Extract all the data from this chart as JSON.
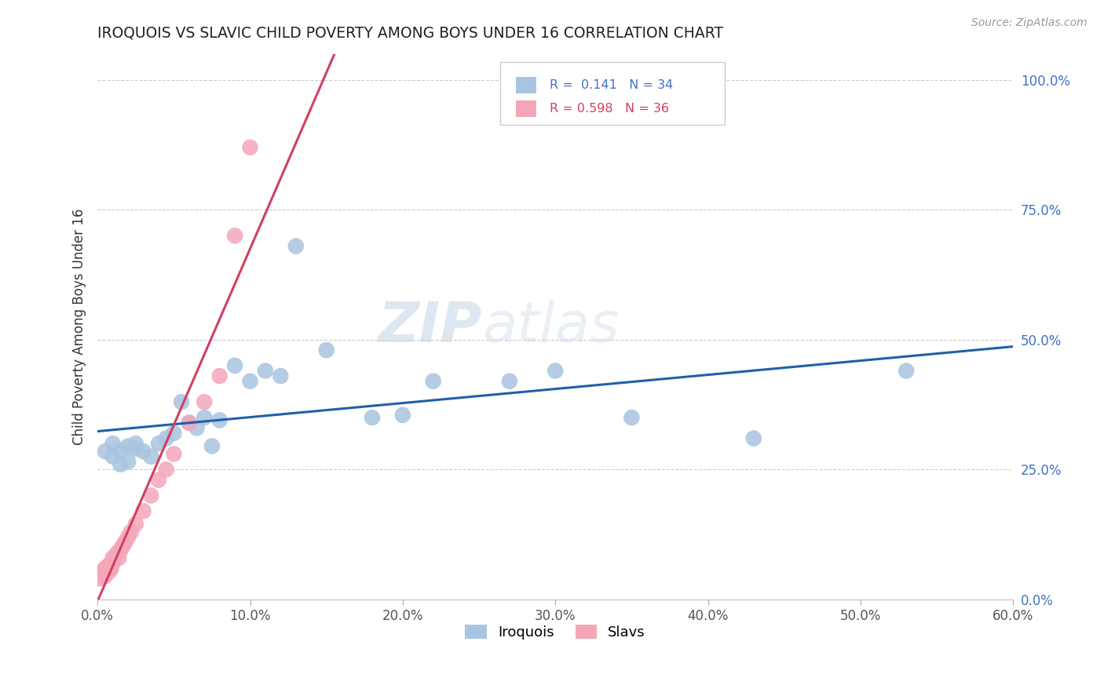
{
  "title": "IROQUOIS VS SLAVIC CHILD POVERTY AMONG BOYS UNDER 16 CORRELATION CHART",
  "source": "Source: ZipAtlas.com",
  "ylabel": "Child Poverty Among Boys Under 16",
  "xlabel_ticks": [
    "0.0%",
    "10.0%",
    "20.0%",
    "30.0%",
    "40.0%",
    "50.0%",
    "60.0%"
  ],
  "xlabel_vals": [
    0.0,
    0.1,
    0.2,
    0.3,
    0.4,
    0.5,
    0.6
  ],
  "ylabel_ticks": [
    "0.0%",
    "25.0%",
    "50.0%",
    "75.0%",
    "100.0%"
  ],
  "ylabel_vals": [
    0.0,
    0.25,
    0.5,
    0.75,
    1.0
  ],
  "xlim": [
    0.0,
    0.6
  ],
  "ylim": [
    0.0,
    1.05
  ],
  "iroquois_color": "#a8c4e0",
  "slavs_color": "#f4a7b9",
  "iroquois_line_color": "#2060a8",
  "slavs_line_color": "#d04060",
  "watermark_zip": "ZIP",
  "watermark_atlas": "atlas",
  "iroquois_x": [
    0.005,
    0.01,
    0.01,
    0.015,
    0.015,
    0.02,
    0.02,
    0.025,
    0.025,
    0.03,
    0.035,
    0.04,
    0.045,
    0.05,
    0.055,
    0.06,
    0.065,
    0.07,
    0.075,
    0.08,
    0.09,
    0.1,
    0.11,
    0.12,
    0.13,
    0.15,
    0.18,
    0.2,
    0.22,
    0.27,
    0.3,
    0.35,
    0.43,
    0.53
  ],
  "iroquois_y": [
    0.285,
    0.3,
    0.275,
    0.285,
    0.26,
    0.295,
    0.265,
    0.29,
    0.3,
    0.285,
    0.275,
    0.3,
    0.31,
    0.32,
    0.38,
    0.34,
    0.33,
    0.35,
    0.295,
    0.345,
    0.45,
    0.42,
    0.44,
    0.43,
    0.68,
    0.48,
    0.35,
    0.355,
    0.42,
    0.42,
    0.44,
    0.35,
    0.31,
    0.44
  ],
  "slavs_x": [
    0.002,
    0.003,
    0.004,
    0.004,
    0.005,
    0.005,
    0.006,
    0.007,
    0.007,
    0.008,
    0.008,
    0.009,
    0.009,
    0.01,
    0.01,
    0.011,
    0.012,
    0.013,
    0.014,
    0.015,
    0.016,
    0.017,
    0.018,
    0.02,
    0.022,
    0.025,
    0.03,
    0.035,
    0.04,
    0.045,
    0.05,
    0.06,
    0.07,
    0.08,
    0.09,
    0.1
  ],
  "slavs_y": [
    0.04,
    0.045,
    0.05,
    0.055,
    0.045,
    0.06,
    0.05,
    0.055,
    0.065,
    0.055,
    0.065,
    0.07,
    0.06,
    0.07,
    0.08,
    0.075,
    0.085,
    0.09,
    0.08,
    0.095,
    0.1,
    0.105,
    0.11,
    0.12,
    0.13,
    0.145,
    0.17,
    0.2,
    0.23,
    0.25,
    0.28,
    0.34,
    0.38,
    0.43,
    0.7,
    0.87
  ]
}
